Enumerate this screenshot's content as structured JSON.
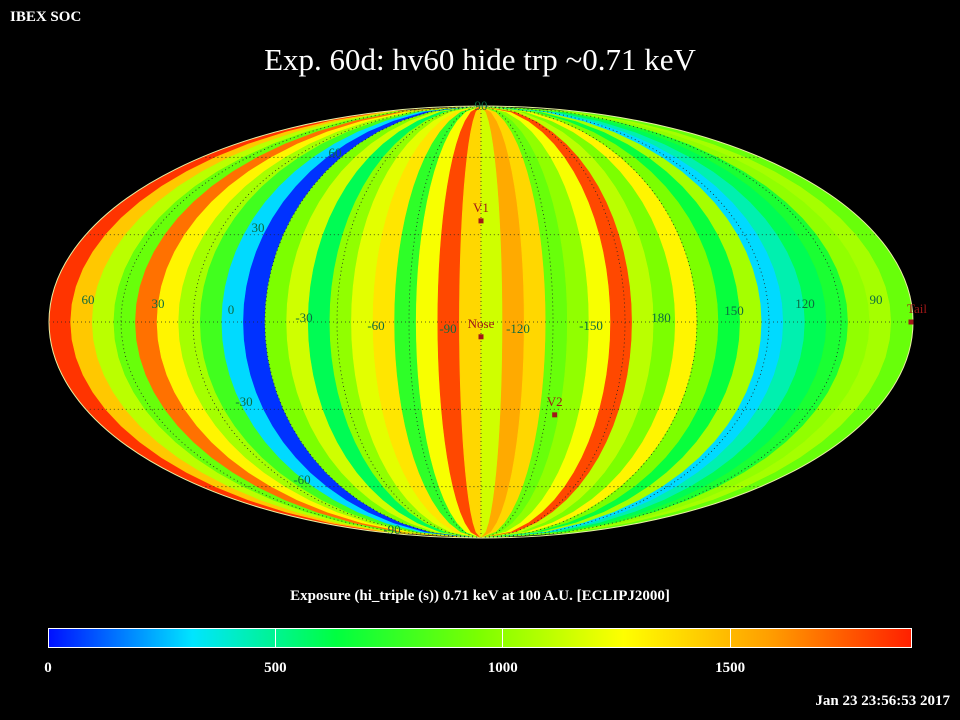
{
  "header": {
    "org": "IBEX SOC",
    "title": "Exp.   60d: hv60 hide trp ~0.71 keV"
  },
  "colorbar": {
    "title": "Exposure (hi_triple (s))  0.71 keV at 100 A.U. [ECLIPJ2000]",
    "ticks": [
      "0",
      "500",
      "1000",
      "1500"
    ],
    "range": [
      0,
      1900
    ],
    "colors": [
      "#0010ff",
      "#00e5ff",
      "#00ff40",
      "#7cff00",
      "#ffff00",
      "#ffa000",
      "#ff2000"
    ]
  },
  "timestamp": "Jan 23 23:56:53 2017",
  "chart_data": {
    "type": "heatmap",
    "projection": "mollweide",
    "title": "Exp.   60d: hv60 hide trp ~0.71 keV",
    "colorbar_label": "Exposure (hi_triple (s))  0.71 keV at 100 A.U. [ECLIPJ2000]",
    "value_range": [
      0,
      1900
    ],
    "longitude_labels": [
      "60",
      "30",
      "0",
      "-30",
      "-60",
      "-90",
      "-120",
      "-150",
      "180",
      "150",
      "120",
      "90"
    ],
    "latitude_labels": [
      "90",
      "60",
      "30",
      "-30",
      "-60",
      "-90"
    ],
    "markers": [
      {
        "label": "V1",
        "lon": 255,
        "lat": 35
      },
      {
        "label": "Nose",
        "lon": 255,
        "lat": -5
      },
      {
        "label": "V2",
        "lon": 289,
        "lat": -32
      },
      {
        "label": "Tail",
        "lon": 75,
        "lat": 5
      }
    ],
    "strip_values": [
      1850,
      1450,
      1100,
      900,
      1700,
      1300,
      1050,
      800,
      300,
      50,
      950,
      1150,
      600,
      1000,
      1200,
      1350,
      750,
      1250,
      1800,
      1400,
      1150,
      1550,
      1400,
      900,
      1000,
      1250,
      1800,
      1100,
      950,
      1300,
      950,
      650,
      1050,
      300,
      450,
      600,
      700,
      1000,
      1050,
      900
    ]
  }
}
